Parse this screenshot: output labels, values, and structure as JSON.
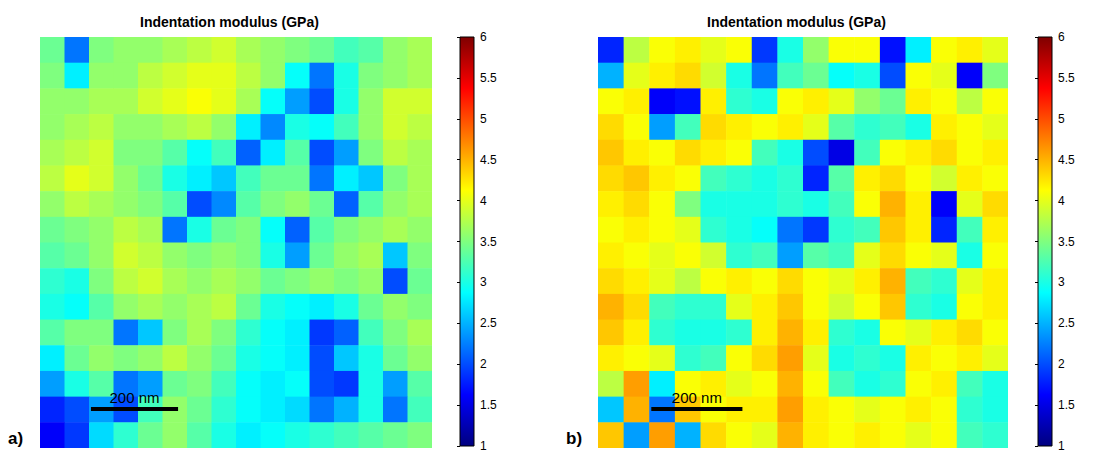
{
  "chart_data": [
    {
      "type": "heatmap",
      "title": "Indentation modulus (GPa)",
      "panel_label": "a)",
      "xlim": [
        0,
        900
      ],
      "ylim": [
        0,
        900
      ],
      "tick_labels": false,
      "scale_bar": {
        "label": "200 nm",
        "length": 200
      },
      "colorbar": {
        "range": [
          1,
          6
        ],
        "ticks": [
          1,
          1.5,
          2,
          2.5,
          3,
          3.5,
          4,
          4.5,
          5,
          5.5,
          6
        ]
      },
      "cells": [
        [
          3.4,
          2.2,
          3.5,
          3.6,
          3.6,
          3.7,
          3.8,
          3.9,
          3.7,
          3.6,
          3.5,
          3.4,
          3.2,
          3.3,
          3.6,
          3.7
        ],
        [
          3.5,
          2.8,
          3.6,
          3.6,
          3.8,
          3.9,
          4.0,
          4.0,
          3.8,
          3.6,
          2.9,
          2.2,
          3.0,
          3.5,
          3.6,
          3.7
        ],
        [
          3.6,
          3.6,
          3.7,
          3.7,
          3.9,
          4.0,
          4.1,
          4.0,
          3.7,
          2.9,
          2.4,
          2.0,
          3.0,
          3.6,
          3.9,
          3.9
        ],
        [
          3.6,
          3.7,
          3.8,
          3.6,
          3.6,
          3.7,
          3.8,
          3.6,
          2.8,
          2.3,
          3.0,
          2.9,
          3.2,
          3.6,
          3.9,
          3.8
        ],
        [
          3.7,
          3.8,
          3.9,
          3.5,
          3.5,
          3.3,
          2.9,
          3.2,
          2.1,
          2.8,
          3.3,
          2.0,
          2.4,
          3.5,
          3.8,
          3.7
        ],
        [
          3.8,
          4.0,
          3.9,
          3.6,
          3.4,
          3.0,
          2.8,
          2.6,
          3.2,
          3.4,
          3.4,
          2.2,
          2.8,
          2.6,
          3.5,
          3.7
        ],
        [
          3.6,
          3.8,
          3.7,
          3.6,
          3.5,
          3.3,
          2.0,
          2.3,
          3.3,
          3.5,
          3.6,
          3.4,
          2.1,
          3.3,
          3.6,
          3.7
        ],
        [
          3.4,
          3.5,
          3.6,
          3.8,
          3.7,
          2.2,
          3.0,
          3.4,
          3.5,
          2.9,
          2.1,
          3.3,
          3.5,
          3.6,
          3.7,
          3.6
        ],
        [
          3.3,
          3.4,
          3.6,
          3.9,
          3.8,
          3.6,
          3.5,
          3.6,
          3.5,
          3.0,
          2.4,
          3.4,
          3.6,
          3.7,
          2.6,
          3.5
        ],
        [
          3.1,
          3.0,
          3.5,
          3.8,
          3.9,
          3.7,
          3.6,
          3.7,
          3.6,
          3.4,
          3.5,
          3.6,
          3.5,
          3.6,
          2.0,
          3.4
        ],
        [
          3.0,
          2.9,
          3.3,
          3.6,
          3.7,
          3.6,
          3.7,
          3.8,
          3.4,
          3.0,
          2.9,
          2.8,
          3.0,
          3.4,
          3.6,
          3.5
        ],
        [
          3.3,
          3.5,
          3.5,
          2.2,
          2.6,
          3.5,
          3.7,
          3.5,
          3.1,
          2.9,
          2.8,
          1.9,
          2.1,
          3.2,
          3.5,
          3.7
        ],
        [
          2.8,
          3.4,
          3.6,
          3.5,
          3.6,
          3.8,
          3.6,
          3.4,
          3.0,
          2.9,
          2.8,
          2.0,
          2.6,
          3.0,
          3.4,
          3.6
        ],
        [
          2.4,
          3.0,
          3.3,
          2.2,
          2.4,
          3.4,
          3.5,
          3.2,
          2.9,
          2.8,
          2.9,
          2.0,
          1.9,
          3.0,
          2.4,
          3.3
        ],
        [
          1.8,
          2.0,
          2.4,
          2.0,
          3.2,
          3.6,
          3.4,
          3.1,
          2.9,
          2.8,
          2.7,
          2.2,
          2.5,
          3.0,
          2.2,
          3.2
        ],
        [
          1.6,
          1.9,
          2.7,
          3.1,
          3.4,
          3.6,
          3.3,
          3.0,
          2.8,
          2.9,
          3.0,
          3.1,
          3.2,
          3.3,
          3.4,
          3.5
        ]
      ]
    },
    {
      "type": "heatmap",
      "title": "Indentation modulus (GPa)",
      "panel_label": "b)",
      "xlim": [
        0,
        900
      ],
      "ylim": [
        0,
        900
      ],
      "tick_labels": false,
      "scale_bar": {
        "label": "200 nm",
        "length": 200
      },
      "colorbar": {
        "range": [
          1,
          6
        ],
        "ticks": [
          1,
          1.5,
          2,
          2.5,
          3,
          3.5,
          4,
          4.5,
          5,
          5.5,
          6
        ]
      },
      "cells": [
        [
          1.8,
          3.8,
          4.1,
          4.2,
          4.0,
          4.1,
          1.9,
          3.0,
          3.6,
          4.1,
          4.1,
          1.7,
          2.8,
          4.1,
          4.2,
          4.0
        ],
        [
          2.5,
          4.0,
          4.2,
          4.3,
          3.9,
          3.0,
          2.2,
          3.2,
          3.4,
          2.9,
          3.0,
          2.0,
          4.1,
          4.0,
          1.6,
          3.5
        ],
        [
          4.1,
          4.2,
          1.6,
          1.7,
          4.2,
          3.1,
          3.0,
          4.1,
          4.2,
          4.0,
          3.6,
          3.4,
          4.2,
          4.1,
          3.8,
          4.1
        ],
        [
          4.3,
          4.1,
          2.4,
          3.2,
          4.3,
          4.2,
          4.1,
          4.2,
          4.0,
          3.3,
          3.1,
          3.2,
          3.0,
          4.2,
          4.1,
          4.0
        ],
        [
          4.4,
          4.2,
          4.1,
          4.3,
          4.2,
          4.1,
          3.2,
          3.0,
          2.0,
          1.5,
          3.2,
          4.1,
          4.2,
          4.3,
          4.1,
          4.2
        ],
        [
          4.3,
          4.4,
          4.2,
          4.1,
          3.2,
          3.1,
          3.0,
          3.1,
          1.8,
          3.3,
          4.2,
          4.3,
          4.1,
          3.9,
          4.2,
          4.1
        ],
        [
          4.2,
          4.3,
          4.1,
          3.5,
          3.0,
          3.0,
          3.0,
          3.1,
          3.0,
          3.2,
          4.1,
          4.5,
          4.2,
          1.6,
          4.0,
          4.3
        ],
        [
          4.1,
          4.2,
          4.1,
          4.0,
          3.1,
          3.0,
          2.9,
          2.2,
          1.9,
          3.1,
          3.2,
          4.4,
          4.2,
          1.8,
          3.2,
          4.2
        ],
        [
          4.2,
          4.1,
          4.0,
          4.1,
          3.9,
          3.1,
          3.2,
          2.4,
          3.3,
          3.2,
          4.0,
          4.3,
          4.1,
          4.0,
          3.0,
          4.1
        ],
        [
          4.3,
          4.2,
          4.0,
          3.8,
          4.1,
          4.2,
          4.1,
          4.3,
          4.1,
          4.0,
          4.2,
          4.5,
          3.2,
          3.1,
          4.0,
          4.2
        ],
        [
          4.5,
          4.3,
          3.2,
          3.1,
          3.1,
          4.0,
          4.2,
          4.4,
          4.1,
          3.9,
          4.1,
          4.4,
          3.1,
          3.0,
          4.1,
          4.2
        ],
        [
          4.4,
          4.2,
          3.1,
          3.0,
          3.0,
          3.1,
          4.2,
          4.5,
          4.2,
          3.1,
          3.0,
          4.1,
          4.0,
          4.2,
          4.3,
          4.1
        ],
        [
          4.2,
          4.1,
          4.0,
          3.1,
          3.2,
          4.1,
          4.3,
          4.6,
          4.0,
          3.0,
          3.1,
          3.0,
          4.2,
          4.1,
          4.2,
          4.0
        ],
        [
          3.8,
          4.6,
          2.8,
          4.1,
          4.2,
          4.0,
          4.1,
          4.5,
          4.1,
          3.2,
          3.0,
          3.1,
          4.1,
          4.2,
          3.2,
          3.0
        ],
        [
          2.6,
          4.5,
          2.2,
          4.4,
          4.1,
          4.2,
          4.2,
          4.6,
          4.2,
          4.1,
          4.0,
          4.1,
          4.2,
          4.1,
          3.1,
          3.0
        ],
        [
          4.4,
          2.4,
          4.6,
          2.5,
          4.3,
          4.1,
          4.0,
          4.5,
          4.2,
          4.1,
          4.2,
          4.1,
          4.0,
          4.1,
          3.2,
          3.1
        ]
      ]
    }
  ]
}
